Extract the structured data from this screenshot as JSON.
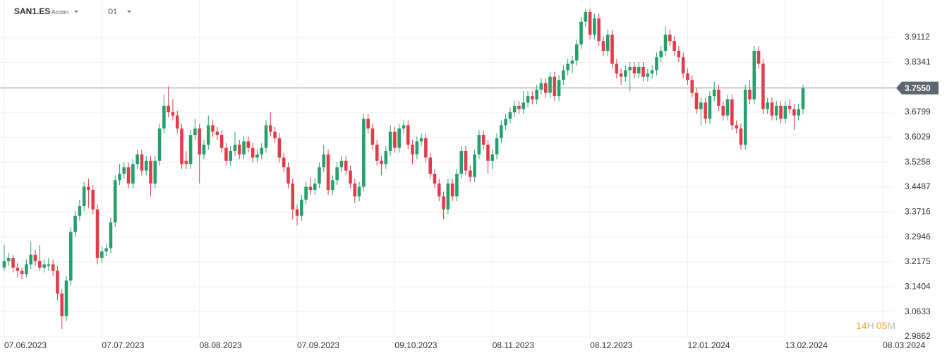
{
  "chart_data": {
    "type": "candlestick",
    "title": "SAN1.ES",
    "subtitle": "Acción",
    "timeframe": "D1",
    "timer": [
      "14",
      "H",
      "05",
      "M"
    ],
    "up_color": "#26a06b",
    "down_color": "#e23b4a",
    "price_line": {
      "value": 3.755,
      "label": "3.7550"
    },
    "xlim": [
      -0.95,
      200.2
    ],
    "ylim": [
      2.9862,
      4.027
    ],
    "xticks": [
      {
        "value": 0,
        "label": "07.06.2023"
      },
      {
        "value": 22,
        "label": "07.07.2023"
      },
      {
        "value": 44,
        "label": "08.08.2023"
      },
      {
        "value": 66,
        "label": "07.09.2023"
      },
      {
        "value": 88,
        "label": "09.10.2023"
      },
      {
        "value": 110,
        "label": "08.11.2023"
      },
      {
        "value": 132,
        "label": "08.12.2023"
      },
      {
        "value": 154,
        "label": "12.01.2024"
      },
      {
        "value": 176,
        "label": "13.02.2024"
      },
      {
        "value": 198,
        "label": "08.03.2024"
      }
    ],
    "yticks": [
      2.9862,
      3.0633,
      3.1404,
      3.2175,
      3.2946,
      3.3716,
      3.4487,
      3.5258,
      3.6029,
      3.6799,
      3.8341,
      3.9112
    ],
    "grid": true,
    "x": [
      0,
      1,
      2,
      3,
      4,
      5,
      6,
      7,
      8,
      9,
      10,
      11,
      12,
      13,
      14,
      15,
      16,
      17,
      18,
      19,
      20,
      21,
      22,
      23,
      24,
      25,
      26,
      27,
      28,
      29,
      30,
      31,
      32,
      33,
      34,
      35,
      36,
      37,
      38,
      39,
      40,
      41,
      42,
      43,
      44,
      45,
      46,
      47,
      48,
      49,
      50,
      51,
      52,
      53,
      54,
      55,
      56,
      57,
      58,
      59,
      60,
      61,
      62,
      63,
      64,
      65,
      66,
      67,
      68,
      69,
      70,
      71,
      72,
      73,
      74,
      75,
      76,
      77,
      78,
      79,
      80,
      81,
      82,
      83,
      84,
      85,
      86,
      87,
      88,
      89,
      90,
      91,
      92,
      93,
      94,
      95,
      96,
      97,
      98,
      99,
      100,
      101,
      102,
      103,
      104,
      105,
      106,
      107,
      108,
      109,
      110,
      111,
      112,
      113,
      114,
      115,
      116,
      117,
      118,
      119,
      120,
      121,
      122,
      123,
      124,
      125,
      126,
      127,
      128,
      129,
      130,
      131,
      132,
      133,
      134,
      135,
      136,
      137,
      138,
      139,
      140,
      141,
      142,
      143,
      144,
      145,
      146,
      147,
      148,
      149,
      150,
      151,
      152,
      153,
      154,
      155,
      156,
      157,
      158,
      159,
      160,
      161,
      162,
      163,
      164,
      165,
      166,
      167,
      168,
      169,
      170,
      171,
      172,
      173,
      174,
      175,
      176,
      177,
      178,
      179,
      180
    ],
    "candles": [
      [
        3.2,
        3.27,
        3.19,
        3.22
      ],
      [
        3.22,
        3.245,
        3.205,
        3.23
      ],
      [
        3.23,
        3.24,
        3.185,
        3.2
      ],
      [
        3.2,
        3.215,
        3.17,
        3.19
      ],
      [
        3.19,
        3.2,
        3.165,
        3.18
      ],
      [
        3.18,
        3.225,
        3.17,
        3.21
      ],
      [
        3.21,
        3.28,
        3.195,
        3.24
      ],
      [
        3.24,
        3.255,
        3.205,
        3.22
      ],
      [
        3.22,
        3.27,
        3.19,
        3.2
      ],
      [
        3.2,
        3.225,
        3.185,
        3.21
      ],
      [
        3.205,
        3.23,
        3.19,
        3.21
      ],
      [
        3.21,
        3.225,
        3.175,
        3.19
      ],
      [
        3.19,
        3.205,
        3.1,
        3.12
      ],
      [
        3.12,
        3.135,
        3.01,
        3.05
      ],
      [
        3.05,
        3.175,
        3.035,
        3.16
      ],
      [
        3.16,
        3.325,
        3.145,
        3.31
      ],
      [
        3.31,
        3.375,
        3.295,
        3.36
      ],
      [
        3.36,
        3.41,
        3.345,
        3.39
      ],
      [
        3.39,
        3.465,
        3.375,
        3.45
      ],
      [
        3.45,
        3.475,
        3.385,
        3.44
      ],
      [
        3.44,
        3.455,
        3.365,
        3.38
      ],
      [
        3.38,
        3.395,
        3.21,
        3.23
      ],
      [
        3.23,
        3.265,
        3.215,
        3.25
      ],
      [
        3.25,
        3.275,
        3.235,
        3.26
      ],
      [
        3.26,
        3.355,
        3.245,
        3.34
      ],
      [
        3.34,
        3.485,
        3.325,
        3.47
      ],
      [
        3.47,
        3.52,
        3.455,
        3.49
      ],
      [
        3.49,
        3.525,
        3.475,
        3.51
      ],
      [
        3.51,
        3.525,
        3.445,
        3.46
      ],
      [
        3.46,
        3.535,
        3.445,
        3.52
      ],
      [
        3.52,
        3.565,
        3.505,
        3.55
      ],
      [
        3.55,
        3.565,
        3.485,
        3.5
      ],
      [
        3.5,
        3.545,
        3.485,
        3.53
      ],
      [
        3.53,
        3.545,
        3.42,
        3.46
      ],
      [
        3.46,
        3.545,
        3.445,
        3.53
      ],
      [
        3.53,
        3.645,
        3.515,
        3.63
      ],
      [
        3.63,
        3.735,
        3.615,
        3.7
      ],
      [
        3.7,
        3.76,
        3.665,
        3.68
      ],
      [
        3.68,
        3.72,
        3.655,
        3.67
      ],
      [
        3.67,
        3.685,
        3.615,
        3.63
      ],
      [
        3.63,
        3.645,
        3.505,
        3.52
      ],
      [
        3.53,
        3.56,
        3.505,
        3.52
      ],
      [
        3.52,
        3.625,
        3.505,
        3.61
      ],
      [
        3.61,
        3.66,
        3.595,
        3.63
      ],
      [
        3.63,
        3.645,
        3.46,
        3.55
      ],
      [
        3.55,
        3.595,
        3.535,
        3.58
      ],
      [
        3.58,
        3.67,
        3.565,
        3.64
      ],
      [
        3.64,
        3.655,
        3.605,
        3.62
      ],
      [
        3.62,
        3.635,
        3.595,
        3.61
      ],
      [
        3.61,
        3.625,
        3.555,
        3.57
      ],
      [
        3.57,
        3.585,
        3.515,
        3.53
      ],
      [
        3.53,
        3.575,
        3.515,
        3.56
      ],
      [
        3.56,
        3.62,
        3.545,
        3.58
      ],
      [
        3.58,
        3.595,
        3.535,
        3.55
      ],
      [
        3.55,
        3.605,
        3.535,
        3.59
      ],
      [
        3.59,
        3.605,
        3.555,
        3.57
      ],
      [
        3.57,
        3.585,
        3.525,
        3.54
      ],
      [
        3.54,
        3.565,
        3.525,
        3.55
      ],
      [
        3.55,
        3.585,
        3.535,
        3.57
      ],
      [
        3.57,
        3.655,
        3.555,
        3.64
      ],
      [
        3.64,
        3.68,
        3.605,
        3.62
      ],
      [
        3.62,
        3.635,
        3.585,
        3.6
      ],
      [
        3.6,
        3.615,
        3.525,
        3.54
      ],
      [
        3.54,
        3.555,
        3.495,
        3.51
      ],
      [
        3.51,
        3.525,
        3.445,
        3.46
      ],
      [
        3.46,
        3.475,
        3.35,
        3.38
      ],
      [
        3.38,
        3.395,
        3.33,
        3.36
      ],
      [
        3.36,
        3.425,
        3.345,
        3.41
      ],
      [
        3.41,
        3.465,
        3.395,
        3.45
      ],
      [
        3.45,
        3.48,
        3.425,
        3.44
      ],
      [
        3.44,
        3.475,
        3.425,
        3.46
      ],
      [
        3.46,
        3.525,
        3.445,
        3.51
      ],
      [
        3.51,
        3.58,
        3.495,
        3.55
      ],
      [
        3.55,
        3.565,
        3.425,
        3.44
      ],
      [
        3.44,
        3.485,
        3.425,
        3.47
      ],
      [
        3.47,
        3.525,
        3.455,
        3.51
      ],
      [
        3.51,
        3.545,
        3.495,
        3.53
      ],
      [
        3.53,
        3.545,
        3.485,
        3.5
      ],
      [
        3.5,
        3.515,
        3.445,
        3.46
      ],
      [
        3.46,
        3.475,
        3.4,
        3.42
      ],
      [
        3.42,
        3.465,
        3.405,
        3.45
      ],
      [
        3.45,
        3.675,
        3.435,
        3.66
      ],
      [
        3.66,
        3.675,
        3.615,
        3.63
      ],
      [
        3.63,
        3.645,
        3.565,
        3.58
      ],
      [
        3.58,
        3.595,
        3.515,
        3.53
      ],
      [
        3.53,
        3.545,
        3.485,
        3.52
      ],
      [
        3.52,
        3.575,
        3.505,
        3.56
      ],
      [
        3.56,
        3.64,
        3.545,
        3.62
      ],
      [
        3.62,
        3.635,
        3.555,
        3.57
      ],
      [
        3.57,
        3.645,
        3.555,
        3.63
      ],
      [
        3.63,
        3.655,
        3.615,
        3.64
      ],
      [
        3.64,
        3.655,
        3.565,
        3.58
      ],
      [
        3.58,
        3.595,
        3.52,
        3.55
      ],
      [
        3.55,
        3.605,
        3.535,
        3.59
      ],
      [
        3.59,
        3.615,
        3.575,
        3.6
      ],
      [
        3.6,
        3.615,
        3.525,
        3.54
      ],
      [
        3.54,
        3.555,
        3.475,
        3.49
      ],
      [
        3.49,
        3.505,
        3.445,
        3.46
      ],
      [
        3.46,
        3.475,
        3.405,
        3.42
      ],
      [
        3.42,
        3.435,
        3.35,
        3.38
      ],
      [
        3.38,
        3.475,
        3.365,
        3.46
      ],
      [
        3.46,
        3.475,
        3.405,
        3.42
      ],
      [
        3.42,
        3.505,
        3.405,
        3.49
      ],
      [
        3.49,
        3.575,
        3.475,
        3.56
      ],
      [
        3.56,
        3.575,
        3.485,
        3.5
      ],
      [
        3.5,
        3.515,
        3.465,
        3.48
      ],
      [
        3.48,
        3.565,
        3.465,
        3.55
      ],
      [
        3.55,
        3.625,
        3.535,
        3.61
      ],
      [
        3.61,
        3.625,
        3.565,
        3.58
      ],
      [
        3.58,
        3.595,
        3.49,
        3.53
      ],
      [
        3.53,
        3.565,
        3.505,
        3.55
      ],
      [
        3.55,
        3.615,
        3.535,
        3.6
      ],
      [
        3.6,
        3.655,
        3.585,
        3.64
      ],
      [
        3.64,
        3.675,
        3.625,
        3.66
      ],
      [
        3.66,
        3.695,
        3.645,
        3.68
      ],
      [
        3.68,
        3.715,
        3.665,
        3.7
      ],
      [
        3.7,
        3.715,
        3.675,
        3.69
      ],
      [
        3.69,
        3.745,
        3.675,
        3.71
      ],
      [
        3.71,
        3.745,
        3.695,
        3.73
      ],
      [
        3.73,
        3.745,
        3.705,
        3.72
      ],
      [
        3.72,
        3.765,
        3.705,
        3.75
      ],
      [
        3.75,
        3.785,
        3.735,
        3.77
      ],
      [
        3.77,
        3.785,
        3.725,
        3.74
      ],
      [
        3.74,
        3.805,
        3.725,
        3.79
      ],
      [
        3.79,
        3.805,
        3.715,
        3.73
      ],
      [
        3.73,
        3.795,
        3.715,
        3.78
      ],
      [
        3.78,
        3.825,
        3.765,
        3.81
      ],
      [
        3.81,
        3.845,
        3.795,
        3.83
      ],
      [
        3.83,
        3.855,
        3.8,
        3.84
      ],
      [
        3.84,
        3.905,
        3.825,
        3.89
      ],
      [
        3.89,
        3.975,
        3.875,
        3.96
      ],
      [
        3.96,
        4.0,
        3.945,
        3.99
      ],
      [
        3.99,
        4.0,
        3.905,
        3.92
      ],
      [
        3.92,
        3.985,
        3.905,
        3.97
      ],
      [
        3.97,
        3.985,
        3.885,
        3.9
      ],
      [
        3.9,
        3.915,
        3.855,
        3.87
      ],
      [
        3.87,
        3.935,
        3.855,
        3.92
      ],
      [
        3.92,
        3.935,
        3.815,
        3.83
      ],
      [
        3.83,
        3.845,
        3.785,
        3.8
      ],
      [
        3.8,
        3.815,
        3.765,
        3.79
      ],
      [
        3.79,
        3.825,
        3.775,
        3.81
      ],
      [
        3.81,
        3.835,
        3.745,
        3.82
      ],
      [
        3.82,
        3.835,
        3.785,
        3.8
      ],
      [
        3.8,
        3.835,
        3.785,
        3.82
      ],
      [
        3.82,
        3.835,
        3.775,
        3.79
      ],
      [
        3.79,
        3.815,
        3.775,
        3.8
      ],
      [
        3.8,
        3.825,
        3.785,
        3.81
      ],
      [
        3.81,
        3.865,
        3.795,
        3.85
      ],
      [
        3.85,
        3.885,
        3.835,
        3.87
      ],
      [
        3.87,
        3.945,
        3.855,
        3.92
      ],
      [
        3.92,
        3.935,
        3.885,
        3.9
      ],
      [
        3.9,
        3.915,
        3.855,
        3.87
      ],
      [
        3.87,
        3.885,
        3.835,
        3.85
      ],
      [
        3.85,
        3.865,
        3.785,
        3.8
      ],
      [
        3.8,
        3.815,
        3.765,
        3.78
      ],
      [
        3.78,
        3.795,
        3.725,
        3.74
      ],
      [
        3.74,
        3.755,
        3.675,
        3.69
      ],
      [
        3.69,
        3.725,
        3.64,
        3.71
      ],
      [
        3.71,
        3.725,
        3.645,
        3.66
      ],
      [
        3.66,
        3.745,
        3.645,
        3.73
      ],
      [
        3.73,
        3.775,
        3.715,
        3.75
      ],
      [
        3.75,
        3.765,
        3.685,
        3.7
      ],
      [
        3.7,
        3.715,
        3.655,
        3.67
      ],
      [
        3.67,
        3.735,
        3.655,
        3.72
      ],
      [
        3.72,
        3.735,
        3.625,
        3.64
      ],
      [
        3.64,
        3.655,
        3.615,
        3.63
      ],
      [
        3.63,
        3.645,
        3.565,
        3.58
      ],
      [
        3.58,
        3.765,
        3.565,
        3.75
      ],
      [
        3.75,
        3.78,
        3.705,
        3.72
      ],
      [
        3.72,
        3.885,
        3.705,
        3.87
      ],
      [
        3.87,
        3.885,
        3.815,
        3.83
      ],
      [
        3.83,
        3.845,
        3.675,
        3.69
      ],
      [
        3.69,
        3.725,
        3.675,
        3.71
      ],
      [
        3.71,
        3.725,
        3.655,
        3.67
      ],
      [
        3.67,
        3.715,
        3.655,
        3.7
      ],
      [
        3.7,
        3.715,
        3.645,
        3.66
      ],
      [
        3.66,
        3.715,
        3.645,
        3.7
      ],
      [
        3.7,
        3.72,
        3.675,
        3.69
      ],
      [
        3.69,
        3.705,
        3.625,
        3.67
      ],
      [
        3.67,
        3.705,
        3.655,
        3.69
      ],
      [
        3.69,
        3.765,
        3.675,
        3.755
      ]
    ]
  }
}
